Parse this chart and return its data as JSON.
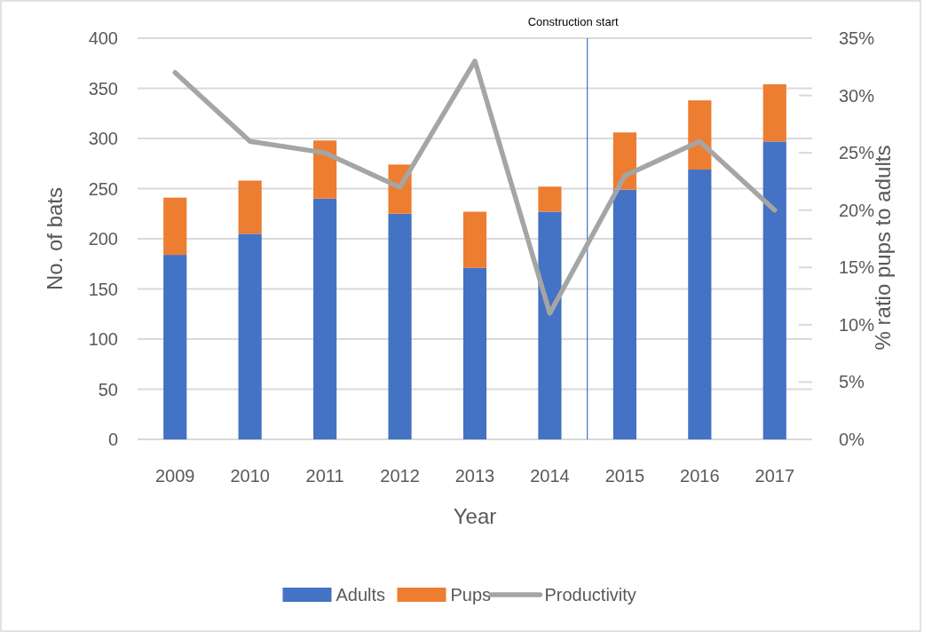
{
  "chart_data": {
    "type": "bar",
    "stacked": true,
    "xlabel": "Year",
    "ylabel": "No. of bats",
    "y2label": "% ratio pups to adults",
    "x": [
      2009,
      2010,
      2011,
      2012,
      2013,
      2014,
      2015,
      2016,
      2017
    ],
    "xlim": [
      2008.5,
      2017.5
    ],
    "xticks": [
      2009,
      2010,
      2011,
      2012,
      2013,
      2014,
      2015,
      2016,
      2017
    ],
    "ylim": [
      0,
      400
    ],
    "yticks": [
      0,
      50,
      100,
      150,
      200,
      250,
      300,
      350,
      400
    ],
    "y2lim": [
      0,
      35
    ],
    "y2ticks": [
      {
        "value": 0,
        "label": "0%"
      },
      {
        "value": 5,
        "label": "5%"
      },
      {
        "value": 10,
        "label": "10%"
      },
      {
        "value": 15,
        "label": "15%"
      },
      {
        "value": 20,
        "label": "20%"
      },
      {
        "value": 25,
        "label": "25%"
      },
      {
        "value": 30,
        "label": "30%"
      },
      {
        "value": 35,
        "label": "35%"
      }
    ],
    "series": [
      {
        "name": "Adults",
        "color": "#4472c4",
        "values": [
          184,
          205,
          240,
          225,
          171,
          227,
          249,
          269,
          297
        ]
      },
      {
        "name": "Pups",
        "color": "#ed7d31",
        "values": [
          57,
          53,
          58,
          49,
          56,
          25,
          57,
          69,
          57
        ]
      },
      {
        "name": "Productivity",
        "type": "line",
        "axis": "y2",
        "color": "#a5a5a5",
        "values": [
          32,
          26,
          25,
          22,
          33,
          11,
          23,
          26,
          20
        ]
      }
    ],
    "ref_lines": [
      {
        "axis": "x",
        "value": 2014.5,
        "label": "Construction start",
        "color": "#4472c4"
      }
    ],
    "grid": "y",
    "legend": "bottom"
  }
}
